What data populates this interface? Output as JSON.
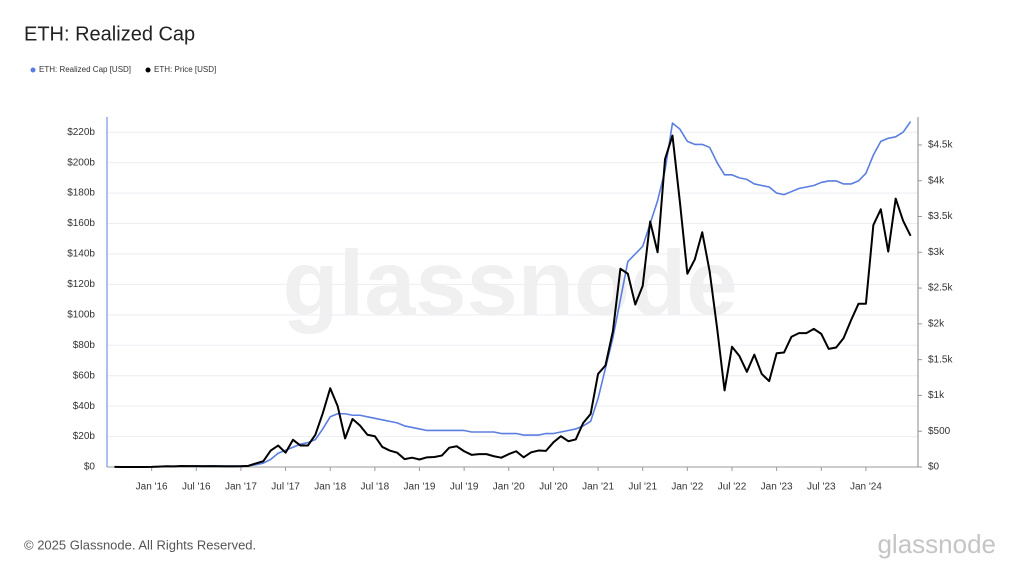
{
  "chart_data": {
    "type": "line",
    "title": "ETH: Realized Cap",
    "watermark": "glassnode",
    "footer": "© 2025 Glassnode. All Rights Reserved.",
    "logo": "glassnode",
    "legend": "top-left",
    "grid": true,
    "x": [
      "2015-08",
      "2015-09",
      "2015-10",
      "2015-11",
      "2015-12",
      "2016-01",
      "2016-02",
      "2016-03",
      "2016-04",
      "2016-05",
      "2016-06",
      "2016-07",
      "2016-08",
      "2016-09",
      "2016-10",
      "2016-11",
      "2016-12",
      "2017-01",
      "2017-02",
      "2017-03",
      "2017-04",
      "2017-05",
      "2017-06",
      "2017-07",
      "2017-08",
      "2017-09",
      "2017-10",
      "2017-11",
      "2017-12",
      "2018-01",
      "2018-02",
      "2018-03",
      "2018-04",
      "2018-05",
      "2018-06",
      "2018-07",
      "2018-08",
      "2018-09",
      "2018-10",
      "2018-11",
      "2018-12",
      "2019-01",
      "2019-02",
      "2019-03",
      "2019-04",
      "2019-05",
      "2019-06",
      "2019-07",
      "2019-08",
      "2019-09",
      "2019-10",
      "2019-11",
      "2019-12",
      "2020-01",
      "2020-02",
      "2020-03",
      "2020-04",
      "2020-05",
      "2020-06",
      "2020-07",
      "2020-08",
      "2020-09",
      "2020-10",
      "2020-11",
      "2020-12",
      "2021-01",
      "2021-02",
      "2021-03",
      "2021-04",
      "2021-05",
      "2021-06",
      "2021-07",
      "2021-08",
      "2021-09",
      "2021-10",
      "2021-11",
      "2021-12",
      "2022-01",
      "2022-02",
      "2022-03",
      "2022-04",
      "2022-05",
      "2022-06",
      "2022-07",
      "2022-08",
      "2022-09",
      "2022-10",
      "2022-11",
      "2022-12",
      "2023-01",
      "2023-02",
      "2023-03",
      "2023-04",
      "2023-05",
      "2023-06",
      "2023-07",
      "2023-08",
      "2023-09",
      "2023-10",
      "2023-11",
      "2023-12",
      "2024-01",
      "2024-02",
      "2024-03",
      "2024-04",
      "2024-05",
      "2024-06",
      "2024-07"
    ],
    "xlim": [
      "2015-07",
      "2024-08"
    ],
    "xticks": [
      {
        "value": "2016-01",
        "label": "Jan '16"
      },
      {
        "value": "2016-07",
        "label": "Jul '16"
      },
      {
        "value": "2017-01",
        "label": "Jan '17"
      },
      {
        "value": "2017-07",
        "label": "Jul '17"
      },
      {
        "value": "2018-01",
        "label": "Jan '18"
      },
      {
        "value": "2018-07",
        "label": "Jul '18"
      },
      {
        "value": "2019-01",
        "label": "Jan '19"
      },
      {
        "value": "2019-07",
        "label": "Jul '19"
      },
      {
        "value": "2020-01",
        "label": "Jan '20"
      },
      {
        "value": "2020-07",
        "label": "Jul '20"
      },
      {
        "value": "2021-01",
        "label": "Jan '21"
      },
      {
        "value": "2021-07",
        "label": "Jul '21"
      },
      {
        "value": "2022-01",
        "label": "Jan '22"
      },
      {
        "value": "2022-07",
        "label": "Jul '22"
      },
      {
        "value": "2023-01",
        "label": "Jan '23"
      },
      {
        "value": "2023-07",
        "label": "Jul '23"
      },
      {
        "value": "2024-01",
        "label": "Jan '24"
      }
    ],
    "ylim": [
      0,
      230
    ],
    "yticks": [
      {
        "value": 0,
        "label": "$0"
      },
      {
        "value": 20,
        "label": "$20b"
      },
      {
        "value": 40,
        "label": "$40b"
      },
      {
        "value": 60,
        "label": "$60b"
      },
      {
        "value": 80,
        "label": "$80b"
      },
      {
        "value": 100,
        "label": "$100b"
      },
      {
        "value": 120,
        "label": "$120b"
      },
      {
        "value": 140,
        "label": "$140b"
      },
      {
        "value": 160,
        "label": "$160b"
      },
      {
        "value": 180,
        "label": "$180b"
      },
      {
        "value": 200,
        "label": "$200b"
      },
      {
        "value": 220,
        "label": "$220b"
      }
    ],
    "y2lim": [
      0,
      4890
    ],
    "y2ticks": [
      {
        "value": 0,
        "label": "$0"
      },
      {
        "value": 500,
        "label": "$500"
      },
      {
        "value": 1000,
        "label": "$1k"
      },
      {
        "value": 1500,
        "label": "$1.5k"
      },
      {
        "value": 2000,
        "label": "$2k"
      },
      {
        "value": 2500,
        "label": "$2.5k"
      },
      {
        "value": 3000,
        "label": "$3k"
      },
      {
        "value": 3500,
        "label": "$3.5k"
      },
      {
        "value": 4000,
        "label": "$4k"
      },
      {
        "value": 4500,
        "label": "$4.5k"
      }
    ],
    "series": [
      {
        "name": "ETH: Realized Cap [USD]",
        "color": "#5b7fe0",
        "axis": "y",
        "values": [
          0.1,
          0.1,
          0.1,
          0.1,
          0.1,
          0.1,
          0.2,
          0.3,
          0.4,
          0.5,
          0.6,
          0.7,
          0.7,
          0.7,
          0.7,
          0.7,
          0.7,
          0.7,
          0.8,
          1.5,
          2.5,
          5,
          9,
          11,
          13,
          15,
          16,
          18,
          25,
          33,
          35,
          35,
          34,
          34,
          33,
          32,
          31,
          30,
          29,
          27,
          26,
          25,
          24,
          24,
          24,
          24,
          24,
          24,
          23,
          23,
          23,
          23,
          22,
          22,
          22,
          21,
          21,
          21,
          22,
          22,
          23,
          24,
          25,
          27,
          30,
          45,
          65,
          85,
          110,
          135,
          140,
          145,
          160,
          175,
          195,
          226,
          222,
          214,
          212,
          212,
          210,
          200,
          192,
          192,
          190,
          189,
          186,
          185,
          184,
          180,
          179,
          181,
          183,
          184,
          185,
          187,
          188,
          188,
          186,
          186,
          188,
          193,
          205,
          214,
          216,
          217,
          220,
          227
        ]
      },
      {
        "name": "ETH: Price [USD]",
        "color": "#000000",
        "axis": "y2",
        "values": [
          1,
          0.8,
          0.6,
          0.9,
          0.9,
          2,
          6,
          11,
          8,
          14,
          12,
          12,
          11,
          13,
          11,
          8,
          8,
          10,
          16,
          50,
          80,
          230,
          300,
          200,
          380,
          300,
          300,
          450,
          750,
          1100,
          850,
          400,
          670,
          580,
          450,
          430,
          280,
          230,
          200,
          110,
          130,
          105,
          135,
          140,
          160,
          270,
          290,
          220,
          170,
          180,
          180,
          150,
          130,
          180,
          220,
          135,
          205,
          230,
          225,
          345,
          430,
          360,
          385,
          615,
          740,
          1300,
          1420,
          1900,
          2770,
          2700,
          2270,
          2530,
          3430,
          3000,
          4300,
          4630,
          3700,
          2700,
          2900,
          3280,
          2730,
          1940,
          1070,
          1680,
          1550,
          1330,
          1570,
          1300,
          1200,
          1590,
          1600,
          1820,
          1870,
          1870,
          1930,
          1860,
          1650,
          1670,
          1800,
          2050,
          2280,
          2280,
          3380,
          3600,
          3010,
          3750,
          3440,
          3230
        ]
      }
    ]
  }
}
